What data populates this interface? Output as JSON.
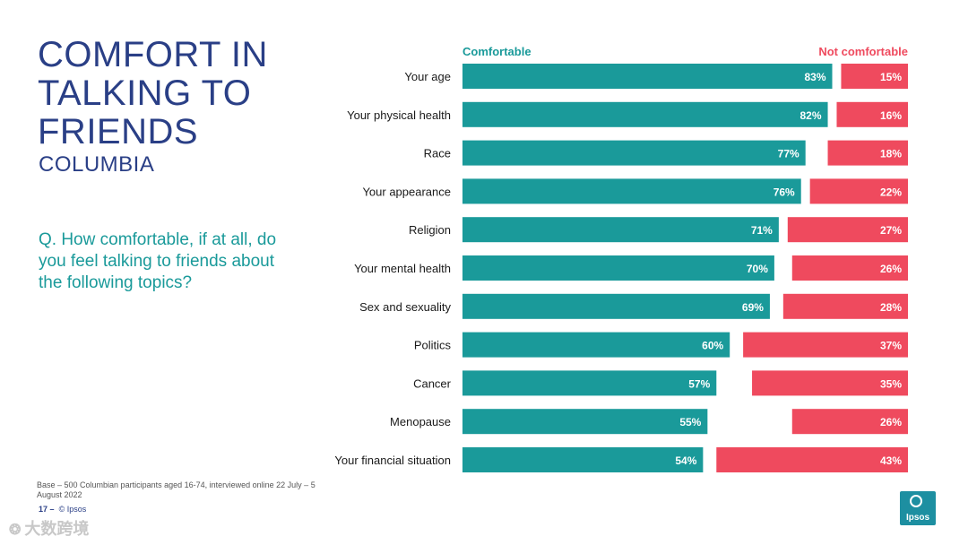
{
  "title_lines": [
    "COMFORT IN",
    "TALKING TO",
    "FRIENDS"
  ],
  "subtitle": "COLUMBIA",
  "question": "Q. How comfortable, if at all, do you feel talking to friends about the following topics?",
  "base_note": "Base – 500 Columbian participants aged 16-74, interviewed online 22 July – 5 August 2022",
  "page_number": "17",
  "page_separator": "–",
  "copyright": "© Ipsos",
  "logo_text": "Ipsos",
  "watermark": "大数跨境",
  "colors": {
    "comfortable": "#1a9a9a",
    "not_comfortable": "#ef4a5e",
    "title": "#2a3f86"
  },
  "chart_data": {
    "type": "bar",
    "orientation": "horizontal-diverging",
    "categories": [
      "Your age",
      "Your physical health",
      "Race",
      "Your appearance",
      "Religion",
      "Your mental health",
      "Sex and sexuality",
      "Politics",
      "Cancer",
      "Menopause",
      "Your financial situation"
    ],
    "series": [
      {
        "name": "Comfortable",
        "values": [
          83,
          82,
          77,
          76,
          71,
          70,
          69,
          60,
          57,
          55,
          54
        ]
      },
      {
        "name": "Not comfortable",
        "values": [
          15,
          16,
          18,
          22,
          27,
          26,
          28,
          37,
          35,
          26,
          43
        ]
      }
    ],
    "value_suffix": "%",
    "xlim": [
      0,
      100
    ],
    "legend": "top",
    "title": "",
    "xlabel": "",
    "ylabel": ""
  }
}
